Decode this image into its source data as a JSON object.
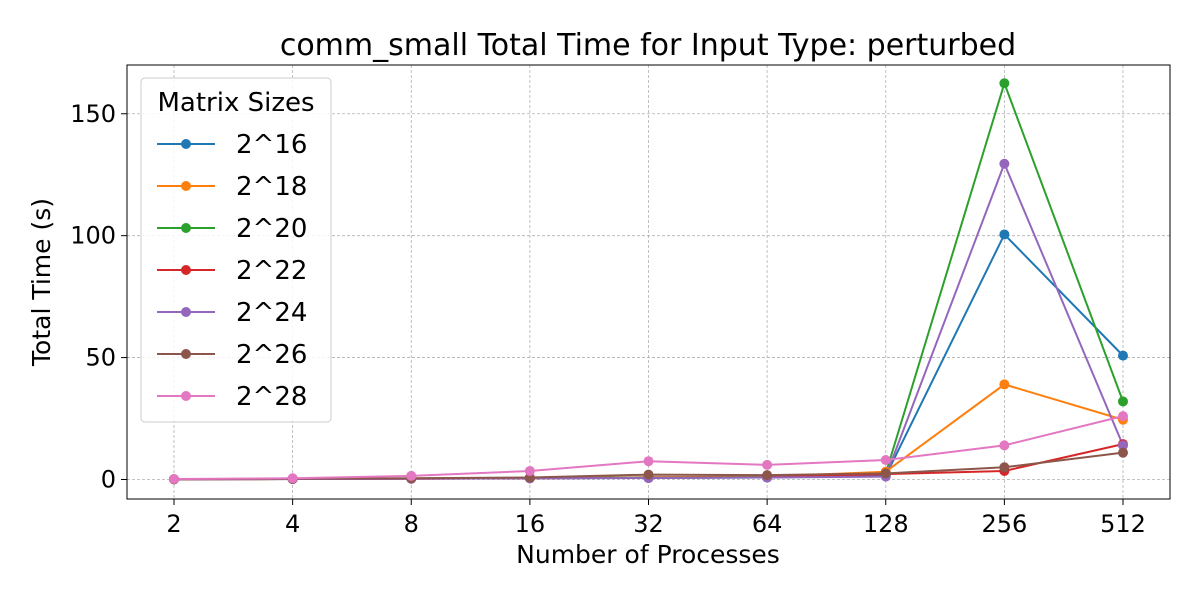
{
  "chart_data": {
    "type": "line",
    "title": "comm_small Total Time for Input Type: perturbed",
    "xlabel": "Number of Processes",
    "ylabel": "Total Time (s)",
    "categories": [
      "2",
      "4",
      "8",
      "16",
      "32",
      "64",
      "128",
      "256",
      "512"
    ],
    "yticks": [
      0,
      50,
      100,
      150
    ],
    "ylim": [
      -8,
      170
    ],
    "grid": true,
    "legend": {
      "title": "Matrix Sizes",
      "position": "top-left"
    },
    "series": [
      {
        "name": "2^16",
        "color": "#1f77b4",
        "values": [
          0.1,
          0.2,
          0.4,
          0.5,
          0.6,
          0.8,
          1.5,
          100.5,
          50.8
        ]
      },
      {
        "name": "2^18",
        "color": "#ff7f0e",
        "values": [
          0.1,
          0.2,
          0.4,
          0.6,
          0.9,
          1.2,
          3.2,
          39,
          24.5
        ]
      },
      {
        "name": "2^20",
        "color": "#2ca02c",
        "values": [
          0.1,
          0.2,
          0.4,
          0.6,
          0.8,
          1.0,
          2.5,
          162.5,
          32
        ]
      },
      {
        "name": "2^22",
        "color": "#d62728",
        "values": [
          0.1,
          0.2,
          0.3,
          0.5,
          0.7,
          0.9,
          2.2,
          3.5,
          14.5
        ]
      },
      {
        "name": "2^24",
        "color": "#9467bd",
        "values": [
          0.1,
          0.2,
          0.3,
          0.5,
          0.6,
          0.8,
          1.2,
          129.5,
          14
        ]
      },
      {
        "name": "2^26",
        "color": "#8c564b",
        "values": [
          0.1,
          0.3,
          0.5,
          0.8,
          2.0,
          1.8,
          2.5,
          5,
          11
        ]
      },
      {
        "name": "2^28",
        "color": "#e377c2",
        "values": [
          0.2,
          0.5,
          1.5,
          3.5,
          7.5,
          6.0,
          8.0,
          14,
          26
        ]
      }
    ]
  }
}
